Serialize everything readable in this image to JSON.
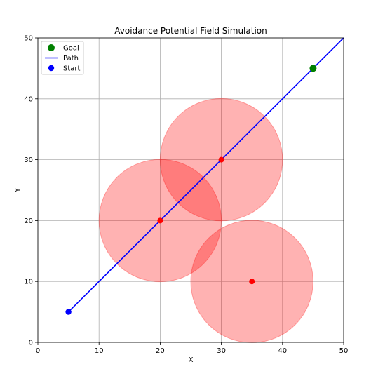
{
  "chart_data": {
    "type": "scatter",
    "title": "Avoidance Potential Field Simulation",
    "xlabel": "X",
    "ylabel": "Y",
    "xlim": [
      0,
      50
    ],
    "ylim": [
      0,
      50
    ],
    "xticks": [
      "0",
      "10",
      "20",
      "30",
      "40",
      "50"
    ],
    "yticks": [
      "0",
      "10",
      "20",
      "30",
      "40",
      "50"
    ],
    "grid": true,
    "legend_position": "top-left",
    "legend": [
      {
        "label": "Goal",
        "marker": "dot",
        "color": "#008000"
      },
      {
        "label": "Path",
        "marker": "line",
        "color": "#0000ff"
      },
      {
        "label": "Start",
        "marker": "dot",
        "color": "#0000ff"
      }
    ],
    "start": {
      "x": 5,
      "y": 5,
      "color": "#0000ff"
    },
    "goal": {
      "x": 45,
      "y": 45,
      "color": "#008000"
    },
    "path": {
      "points": [
        [
          5,
          5
        ],
        [
          50,
          50
        ]
      ],
      "color": "#0000ff"
    },
    "obstacles": [
      {
        "x": 20,
        "y": 20,
        "radius": 10
      },
      {
        "x": 30,
        "y": 30,
        "radius": 10
      },
      {
        "x": 35,
        "y": 10,
        "radius": 10
      }
    ],
    "obstacle_color": "#ff0000",
    "obstacle_center_color": "#ff0000"
  }
}
